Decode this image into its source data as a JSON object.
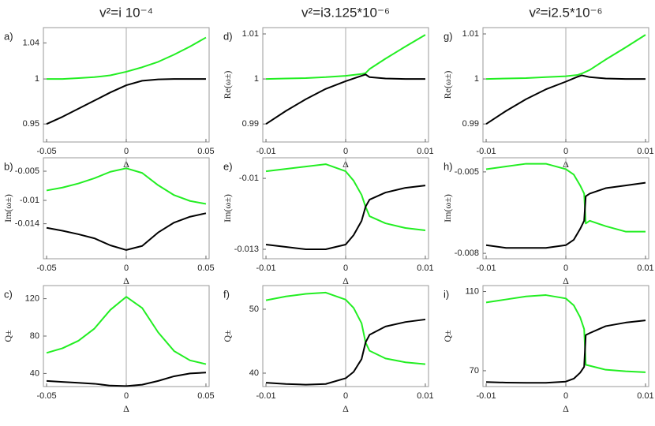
{
  "chart_data": [
    {
      "type": "line",
      "title": "v²=i 10⁻⁴",
      "label": "a)",
      "xlabel": "Δ",
      "x": [
        -0.05,
        -0.04,
        -0.03,
        -0.02,
        -0.01,
        0,
        0.01,
        0.02,
        0.03,
        0.04,
        0.05
      ],
      "series": [
        {
          "color": "#22ee22",
          "values": [
            1.0,
            1.0,
            1.001,
            1.002,
            1.004,
            1.008,
            1.013,
            1.019,
            1.027,
            1.036,
            1.046
          ]
        },
        {
          "color": "#000000",
          "values": [
            0.95,
            0.958,
            0.967,
            0.976,
            0.985,
            0.993,
            0.998,
            0.9995,
            1.0,
            1.0,
            1.0
          ]
        }
      ],
      "xlim": [
        -0.052,
        0.052
      ],
      "ylim": [
        0.93,
        1.057
      ],
      "xticks": [
        -0.05,
        0,
        0.05
      ],
      "yticks": [
        0.95,
        1,
        1.04
      ]
    },
    {
      "type": "line",
      "label": "b)",
      "ylabel": "Im(ω±)",
      "xlabel": "Δ",
      "x": [
        -0.05,
        -0.04,
        -0.03,
        -0.02,
        -0.01,
        0,
        0.01,
        0.02,
        0.03,
        0.04,
        0.05
      ],
      "series": [
        {
          "color": "#22ee22",
          "values": [
            -0.0083,
            -0.0078,
            -0.0071,
            -0.0062,
            -0.0051,
            -0.0045,
            -0.0053,
            -0.0074,
            -0.0091,
            -0.0101,
            -0.0106
          ]
        },
        {
          "color": "#000000",
          "values": [
            -0.0147,
            -0.0152,
            -0.0158,
            -0.0165,
            -0.0177,
            -0.0185,
            -0.0178,
            -0.0155,
            -0.0138,
            -0.0128,
            -0.0122
          ]
        }
      ],
      "xlim": [
        -0.052,
        0.052
      ],
      "ylim": [
        -0.02,
        -0.0027
      ],
      "xticks": [
        -0.05,
        0,
        0.05
      ],
      "yticks": [
        -0.005,
        -0.01,
        -0.014
      ]
    },
    {
      "type": "line",
      "label": "c)",
      "ylabel": "Q±",
      "xlabel": "Δ",
      "x": [
        -0.05,
        -0.04,
        -0.03,
        -0.02,
        -0.01,
        0,
        0.01,
        0.02,
        0.03,
        0.04,
        0.05
      ],
      "series": [
        {
          "color": "#22ee22",
          "values": [
            62,
            67,
            75,
            88,
            108,
            122,
            110,
            84,
            64,
            54,
            50
          ]
        },
        {
          "color": "#000000",
          "values": [
            32,
            31,
            30,
            29,
            27,
            26.5,
            28,
            32,
            37,
            40,
            41
          ]
        }
      ],
      "xlim": [
        -0.052,
        0.052
      ],
      "ylim": [
        26,
        134
      ],
      "xticks": [
        -0.05,
        0,
        0.05
      ],
      "yticks": [
        40,
        80,
        120
      ]
    },
    {
      "type": "line",
      "title": "v²=i3.125*10⁻⁶",
      "label": "d)",
      "ylabel": "Re(ω±)",
      "xlabel": "Δ",
      "x": [
        -0.01,
        -0.0075,
        -0.005,
        -0.0025,
        0,
        0.002,
        0.0025,
        0.003,
        0.005,
        0.0075,
        0.01
      ],
      "series": [
        {
          "color": "#22ee22",
          "values": [
            1.0,
            1.0001,
            1.0002,
            1.0004,
            1.0007,
            1.0011,
            1.0013,
            1.0022,
            1.0045,
            1.0072,
            1.0098
          ]
        },
        {
          "color": "#000000",
          "values": [
            0.99,
            0.9929,
            0.9955,
            0.9978,
            0.9995,
            1.0007,
            1.001,
            1.0004,
            1.0001,
            1.0,
            1.0
          ]
        }
      ],
      "xlim": [
        -0.0104,
        0.0104
      ],
      "ylim": [
        0.986,
        1.0114
      ],
      "xticks": [
        -0.01,
        0,
        0.01
      ],
      "yticks": [
        0.99,
        1,
        1.01
      ]
    },
    {
      "type": "line",
      "label": "e)",
      "ylabel": "Im(ω±)",
      "xlabel": "Δ",
      "x": [
        -0.01,
        -0.0075,
        -0.005,
        -0.0025,
        0,
        0.001,
        0.002,
        0.0025,
        0.003,
        0.005,
        0.0075,
        0.01
      ],
      "series": [
        {
          "color": "#22ee22",
          "values": [
            -0.0097,
            -0.0096,
            -0.0095,
            -0.0094,
            -0.0097,
            -0.0101,
            -0.0107,
            -0.0112,
            -0.0116,
            -0.0119,
            -0.0121,
            -0.0122
          ]
        },
        {
          "color": "#000000",
          "values": [
            -0.0128,
            -0.0129,
            -0.013,
            -0.013,
            -0.0128,
            -0.0124,
            -0.0118,
            -0.0112,
            -0.0109,
            -0.0106,
            -0.0104,
            -0.0103
          ]
        }
      ],
      "xlim": [
        -0.0104,
        0.0104
      ],
      "ylim": [
        -0.0134,
        -0.00913
      ],
      "xticks": [
        -0.01,
        0,
        0.01
      ],
      "yticks": [
        -0.01,
        -0.013
      ]
    },
    {
      "type": "line",
      "label": "f)",
      "ylabel": "Q±",
      "xlabel": "Δ",
      "x": [
        -0.01,
        -0.0075,
        -0.005,
        -0.0025,
        0,
        0.001,
        0.002,
        0.0025,
        0.003,
        0.005,
        0.0075,
        0.01
      ],
      "series": [
        {
          "color": "#22ee22",
          "values": [
            51.4,
            52.0,
            52.4,
            52.6,
            51.5,
            50.2,
            47.8,
            44.8,
            43.5,
            42.3,
            41.7,
            41.4
          ]
        },
        {
          "color": "#000000",
          "values": [
            38.5,
            38.3,
            38.2,
            38.3,
            39.2,
            40.2,
            42.2,
            44.8,
            46.0,
            47.3,
            48.0,
            48.4
          ]
        }
      ],
      "xlim": [
        -0.0104,
        0.0104
      ],
      "ylim": [
        37.9,
        53.7
      ],
      "xticks": [
        -0.01,
        0,
        0.01
      ],
      "yticks": [
        40,
        50
      ]
    },
    {
      "type": "line",
      "title": "v²=i2.5*10⁻⁶",
      "label": "g)",
      "ylabel": "Re(ω±)",
      "xlabel": "Δ",
      "x": [
        -0.01,
        -0.0075,
        -0.005,
        -0.0025,
        0,
        0.0015,
        0.002,
        0.003,
        0.005,
        0.0075,
        0.01
      ],
      "series": [
        {
          "color": "#22ee22",
          "values": [
            1.0,
            1.0001,
            1.0002,
            1.0004,
            1.0006,
            1.0009,
            1.0012,
            1.002,
            1.0043,
            1.007,
            1.0098
          ]
        },
        {
          "color": "#000000",
          "values": [
            0.99,
            0.9929,
            0.9955,
            0.9977,
            0.9994,
            1.0005,
            1.0008,
            1.0004,
            1.0001,
            1.0,
            1.0
          ]
        }
      ],
      "xlim": [
        -0.0104,
        0.0104
      ],
      "ylim": [
        0.986,
        1.0114
      ],
      "xticks": [
        -0.01,
        0,
        0.01
      ],
      "yticks": [
        0.99,
        1,
        1.01
      ]
    },
    {
      "type": "line",
      "label": "h)",
      "ylabel": "Im(ω±)",
      "xlabel": "Δ",
      "x": [
        -0.01,
        -0.0075,
        -0.005,
        -0.0025,
        0,
        0.001,
        0.0018,
        0.0023,
        0.0025,
        0.003,
        0.005,
        0.0075,
        0.01
      ],
      "series": [
        {
          "color": "#22ee22",
          "values": [
            -0.0049,
            -0.0048,
            -0.0047,
            -0.0047,
            -0.0049,
            -0.0051,
            -0.0055,
            -0.0058,
            -0.0069,
            -0.0068,
            -0.007,
            -0.0072,
            -0.0072
          ]
        },
        {
          "color": "#000000",
          "values": [
            -0.0077,
            -0.0078,
            -0.0078,
            -0.0078,
            -0.0077,
            -0.0075,
            -0.0071,
            -0.0068,
            -0.0059,
            -0.0058,
            -0.0056,
            -0.0055,
            -0.0054
          ]
        }
      ],
      "xlim": [
        -0.0104,
        0.0104
      ],
      "ylim": [
        -0.0082,
        -0.00448
      ],
      "xticks": [
        -0.01,
        0,
        0.01
      ],
      "yticks": [
        -0.005,
        -0.008
      ]
    },
    {
      "type": "line",
      "label": "i)",
      "ylabel": "Q±",
      "xlabel": "Δ",
      "x": [
        -0.01,
        -0.0075,
        -0.005,
        -0.0025,
        0,
        0.001,
        0.0018,
        0.0023,
        0.0025,
        0.003,
        0.005,
        0.0075,
        0.01
      ],
      "series": [
        {
          "color": "#22ee22",
          "values": [
            104.5,
            106,
            107.5,
            108.2,
            106.5,
            103,
            97,
            91,
            73,
            72.5,
            70.5,
            69.7,
            69.2
          ]
        },
        {
          "color": "#000000",
          "values": [
            64.3,
            64.0,
            63.9,
            63.9,
            64.5,
            66,
            69,
            72,
            88,
            89,
            92.5,
            94.3,
            95.4
          ]
        }
      ],
      "xlim": [
        -0.0104,
        0.0104
      ],
      "ylim": [
        62,
        113
      ],
      "xticks": [
        -0.01,
        0,
        0.01
      ],
      "yticks": [
        70,
        110
      ]
    }
  ]
}
